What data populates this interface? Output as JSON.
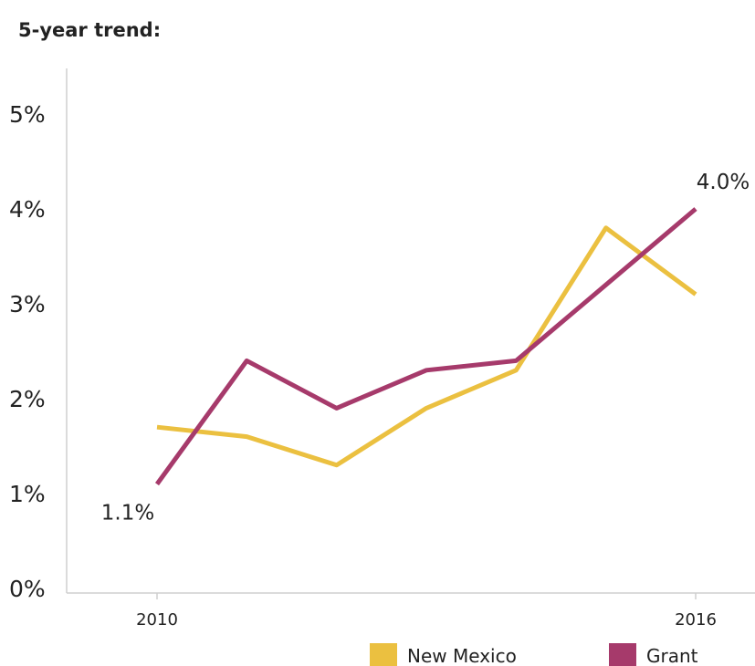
{
  "chart_data": {
    "type": "line",
    "title": "5-year trend:",
    "xlabel": "",
    "ylabel": "",
    "x": [
      2010,
      2011,
      2012,
      2013,
      2014,
      2015,
      2016
    ],
    "x_tick_labels": [
      "2010",
      "2016"
    ],
    "y_tick_labels": [
      "0%",
      "1%",
      "2%",
      "3%",
      "4%",
      "5%"
    ],
    "ylim": [
      0,
      5
    ],
    "grid": false,
    "legend_position": "bottom-right",
    "series": [
      {
        "name": "New Mexico",
        "color": "#EBC040",
        "values": [
          1.7,
          1.6,
          1.3,
          1.9,
          2.3,
          3.8,
          3.1
        ]
      },
      {
        "name": "Grant",
        "color": "#A63A6B",
        "values": [
          1.1,
          2.4,
          1.9,
          2.3,
          2.4,
          3.2,
          4.0
        ]
      }
    ],
    "annotations": [
      {
        "series": "Grant",
        "x": 2010,
        "text": "1.1%"
      },
      {
        "series": "Grant",
        "x": 2016,
        "text": "4.0%"
      }
    ]
  }
}
